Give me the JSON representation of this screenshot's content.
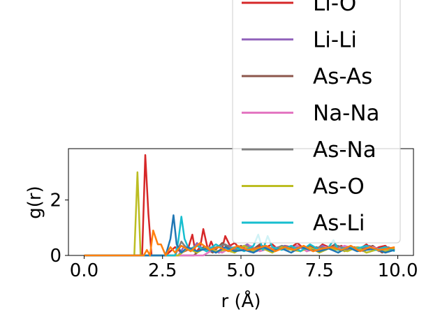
{
  "chart_data": {
    "type": "line",
    "xlabel": "r (Å)",
    "ylabel": "g(r)",
    "xlim": [
      -0.5,
      10.5
    ],
    "ylim": [
      0,
      3.85
    ],
    "xticks": [
      0.0,
      2.5,
      5.0,
      7.5,
      10.0
    ],
    "xtick_labels": [
      "0.0",
      "2.5",
      "5.0",
      "7.5",
      "10.0"
    ],
    "yticks": [
      0,
      2
    ],
    "ytick_labels": [
      "0",
      "2"
    ],
    "grid": false,
    "legend_position": "upper right (extends above the plot area)",
    "series": [
      {
        "name": "Li-O",
        "color": "#d62728",
        "x": [
          0.0,
          1.0,
          1.85,
          1.95,
          2.05,
          2.15,
          2.3,
          2.6,
          2.9,
          3.1,
          3.3,
          3.45,
          3.55,
          3.7,
          3.8,
          3.95,
          4.05,
          4.2,
          4.4,
          4.5,
          4.65,
          4.8,
          5.0,
          5.2,
          5.4,
          5.6,
          5.8,
          6.0,
          6.2,
          6.4,
          6.6,
          6.8,
          7.0,
          7.2,
          7.4,
          7.6,
          7.8,
          8.0,
          8.2,
          8.4,
          8.6,
          8.8,
          9.0,
          9.2,
          9.4,
          9.6,
          9.8
        ],
        "values": [
          0.0,
          0.0,
          0.0,
          3.62,
          1.5,
          0.0,
          0.0,
          0.0,
          0.3,
          0.1,
          0.2,
          0.75,
          0.1,
          0.3,
          0.95,
          0.2,
          0.5,
          0.1,
          0.25,
          0.7,
          0.35,
          0.45,
          0.2,
          0.4,
          0.25,
          0.35,
          0.3,
          0.4,
          0.2,
          0.35,
          0.3,
          0.45,
          0.25,
          0.35,
          0.2,
          0.4,
          0.3,
          0.25,
          0.35,
          0.2,
          0.3,
          0.25,
          0.4,
          0.2,
          0.3,
          0.35,
          0.15
        ]
      },
      {
        "name": "Li-Li",
        "color": "#9467bd",
        "x": [
          0.0,
          3.0,
          3.2,
          3.4,
          3.6,
          3.8,
          4.0,
          4.3,
          4.6,
          4.9,
          5.2,
          5.5,
          5.8,
          6.1,
          6.4,
          6.7,
          7.0,
          7.3,
          7.6,
          7.9,
          8.2,
          8.5,
          8.8,
          9.1,
          9.4,
          9.7,
          9.9
        ],
        "values": [
          0.0,
          0.0,
          0.35,
          0.15,
          0.45,
          0.2,
          0.3,
          0.1,
          0.35,
          0.2,
          0.4,
          0.15,
          0.3,
          0.25,
          0.35,
          0.2,
          0.3,
          0.15,
          0.35,
          0.2,
          0.3,
          0.25,
          0.2,
          0.35,
          0.15,
          0.3,
          0.2
        ]
      },
      {
        "name": "As-As",
        "color": "#8c564b",
        "x": [
          0.0,
          3.5,
          3.8,
          4.1,
          4.4,
          4.7,
          5.0,
          5.3,
          5.6,
          5.9,
          6.2,
          6.5,
          6.8,
          7.1,
          7.4,
          7.7,
          8.0,
          8.3,
          8.6,
          8.9,
          9.2,
          9.5,
          9.8
        ],
        "values": [
          0.0,
          0.0,
          0.3,
          0.1,
          0.45,
          0.2,
          0.35,
          0.15,
          0.4,
          0.2,
          0.3,
          0.25,
          0.35,
          0.15,
          0.3,
          0.2,
          0.4,
          0.15,
          0.3,
          0.2,
          0.35,
          0.1,
          0.25
        ]
      },
      {
        "name": "Na-Na",
        "color": "#e377c2",
        "x": [
          0.0,
          3.8,
          4.1,
          4.4,
          4.7,
          5.0,
          5.3,
          5.6,
          5.9,
          6.2,
          6.5,
          6.8,
          7.1,
          7.4,
          7.7,
          8.0,
          8.3,
          8.6,
          8.9,
          9.2,
          9.5,
          9.8
        ],
        "values": [
          0.0,
          0.0,
          0.2,
          0.1,
          0.3,
          0.2,
          0.35,
          0.15,
          0.25,
          0.3,
          0.2,
          0.35,
          0.15,
          0.25,
          0.3,
          0.2,
          0.35,
          0.25,
          0.15,
          0.3,
          0.2,
          0.25
        ]
      },
      {
        "name": "As-Na",
        "color": "#7f7f7f",
        "x": [
          0.0,
          2.9,
          3.1,
          3.3,
          3.6,
          3.9,
          4.2,
          4.5,
          4.8,
          5.1,
          5.4,
          5.7,
          6.0,
          6.3,
          6.6,
          6.9,
          7.2,
          7.5,
          7.8,
          8.1,
          8.4,
          8.7,
          9.0,
          9.3,
          9.6,
          9.9
        ],
        "values": [
          0.0,
          0.0,
          0.5,
          0.2,
          0.35,
          0.15,
          0.3,
          0.4,
          0.2,
          0.35,
          0.25,
          0.3,
          0.2,
          0.35,
          0.25,
          0.3,
          0.2,
          0.3,
          0.25,
          0.35,
          0.2,
          0.3,
          0.25,
          0.2,
          0.3,
          0.25
        ]
      },
      {
        "name": "As-O",
        "color": "#bcbd22",
        "x": [
          0.0,
          1.0,
          1.6,
          1.7,
          1.8,
          2.0,
          3.0,
          3.3,
          3.6,
          3.9,
          4.2,
          4.5,
          4.8,
          5.1,
          5.4,
          5.7,
          6.0,
          6.3,
          6.6,
          6.9,
          7.2,
          7.5,
          7.8,
          8.1,
          8.4,
          8.7,
          9.0,
          9.3,
          9.6,
          9.9
        ],
        "values": [
          0.0,
          0.0,
          0.0,
          3.0,
          0.0,
          0.0,
          0.0,
          0.25,
          0.1,
          0.3,
          0.15,
          0.2,
          0.1,
          0.35,
          0.15,
          0.25,
          0.1,
          0.3,
          0.2,
          0.15,
          0.3,
          0.1,
          0.25,
          0.2,
          0.15,
          0.3,
          0.1,
          0.2,
          0.15,
          0.25
        ]
      },
      {
        "name": "As-Li",
        "color": "#17becf",
        "x": [
          0.0,
          2.9,
          3.0,
          3.1,
          3.2,
          3.35,
          3.6,
          3.9,
          4.2,
          4.5,
          4.8,
          5.1,
          5.4,
          5.55,
          5.7,
          5.85,
          6.0,
          6.3,
          6.6,
          6.9,
          7.2,
          7.5,
          7.8,
          7.95,
          8.1,
          8.4,
          8.7,
          9.0,
          9.3,
          9.6,
          9.9
        ],
        "values": [
          0.0,
          0.0,
          0.5,
          1.4,
          0.6,
          0.2,
          0.35,
          0.15,
          0.4,
          0.2,
          0.3,
          0.15,
          0.35,
          0.75,
          0.2,
          0.7,
          0.3,
          0.2,
          0.35,
          0.15,
          0.4,
          0.2,
          0.3,
          0.55,
          0.2,
          0.3,
          0.25,
          0.35,
          0.2,
          0.3,
          0.15
        ]
      },
      {
        "name": "",
        "color": "#1f77b4",
        "x": [
          0.0,
          2.6,
          2.75,
          2.85,
          2.95,
          3.1,
          3.3,
          3.6,
          3.9,
          4.2,
          4.5,
          4.8,
          5.1,
          5.4,
          5.7,
          6.0,
          6.3,
          6.6,
          6.9,
          7.2,
          7.5,
          7.8,
          8.1,
          8.4,
          8.7,
          9.0,
          9.3,
          9.6,
          9.9
        ],
        "values": [
          0.0,
          0.0,
          0.6,
          1.45,
          0.4,
          0.1,
          0.3,
          0.15,
          0.25,
          0.1,
          0.3,
          0.15,
          0.2,
          0.1,
          0.3,
          0.15,
          0.25,
          0.1,
          0.3,
          0.2,
          0.15,
          0.25,
          0.1,
          0.3,
          0.15,
          0.2,
          0.25,
          0.1,
          0.2
        ]
      },
      {
        "name": "",
        "color": "#ff7f0e",
        "x": [
          0.0,
          1.9,
          2.0,
          2.1,
          2.2,
          2.35,
          2.45,
          2.6,
          2.75,
          2.9,
          3.1,
          3.4,
          3.7,
          4.0,
          4.3,
          4.6,
          4.9,
          5.2,
          5.5,
          5.8,
          6.1,
          6.4,
          6.7,
          7.0,
          7.3,
          7.6,
          7.9,
          8.2,
          8.5,
          8.8,
          9.1,
          9.4,
          9.7,
          9.9
        ],
        "values": [
          0.0,
          0.0,
          0.2,
          0.0,
          0.9,
          0.4,
          0.4,
          0.0,
          0.3,
          0.1,
          0.35,
          0.15,
          0.45,
          0.2,
          0.3,
          0.15,
          0.35,
          0.2,
          0.25,
          0.35,
          0.15,
          0.3,
          0.2,
          0.35,
          0.15,
          0.25,
          0.3,
          0.2,
          0.35,
          0.15,
          0.3,
          0.2,
          0.25,
          0.3
        ]
      }
    ],
    "legend_entries": [
      "Li-O",
      "Li-Li",
      "As-As",
      "Na-Na",
      "As-Na",
      "As-O",
      "As-Li"
    ]
  }
}
